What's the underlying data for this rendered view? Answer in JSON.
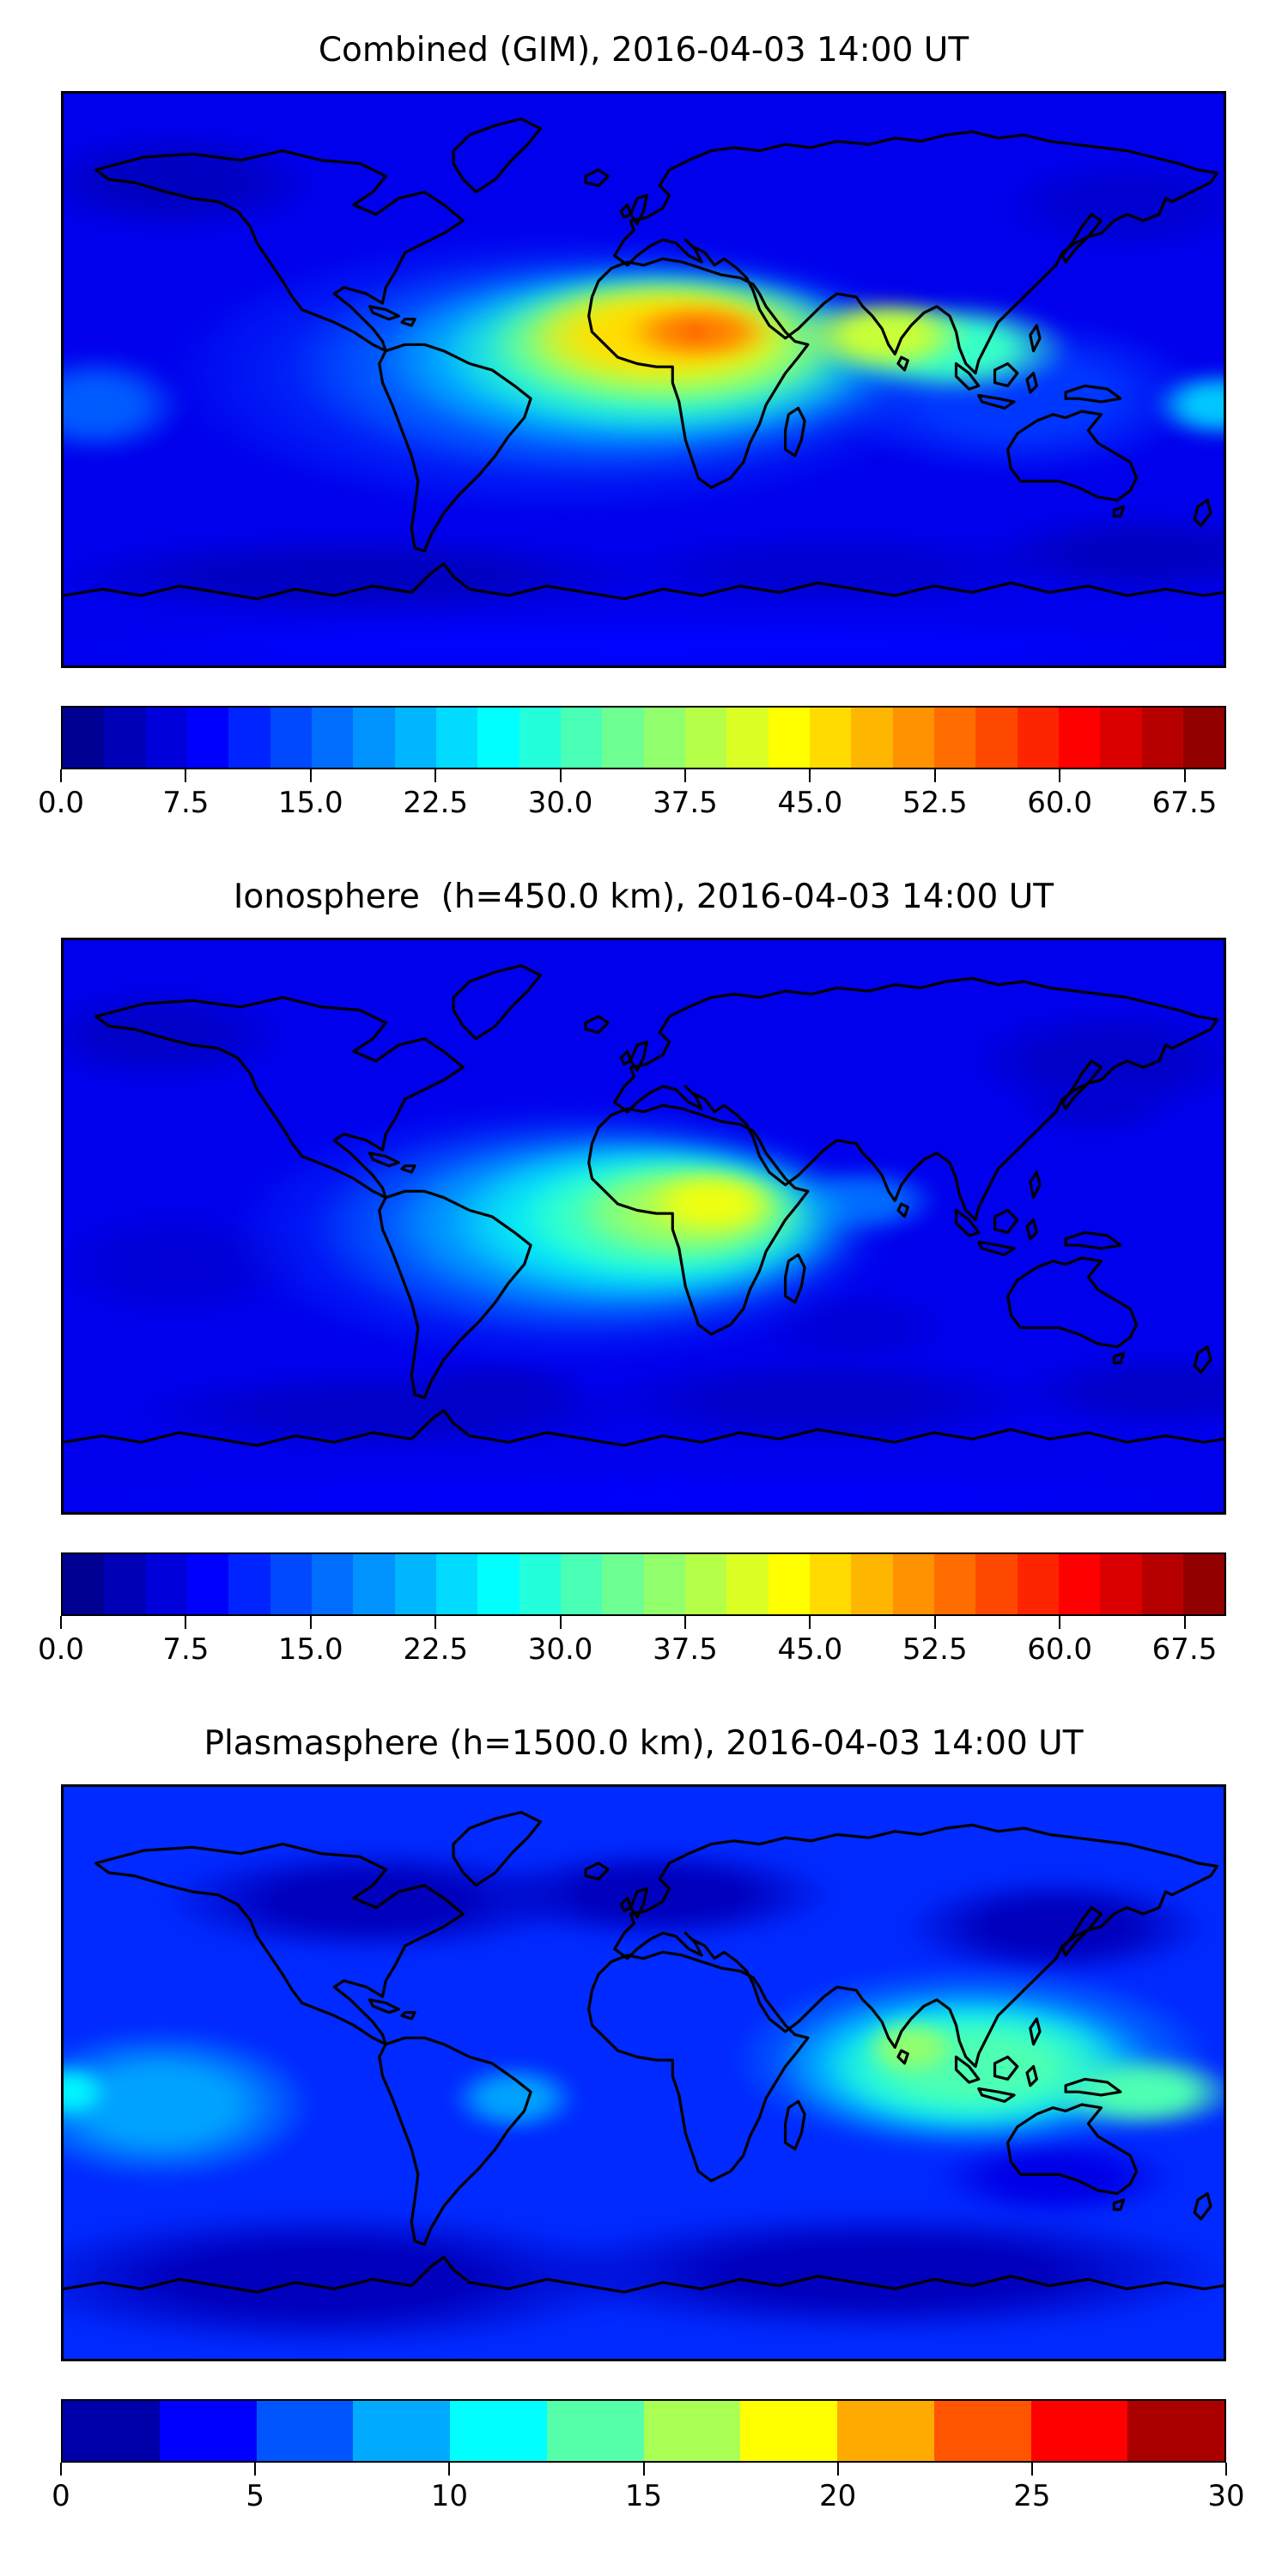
{
  "figure": {
    "background_color": "#ffffff",
    "panel_count": 3
  },
  "chart_data": [
    {
      "id": "combined",
      "type": "heatmap",
      "title": "Combined (GIM), 2016-04-03 14:00 UT",
      "projection": "equirectangular",
      "lon_range": [
        -180,
        180
      ],
      "lat_range": [
        -90,
        90
      ],
      "coastlines": true,
      "base_value": 7.5,
      "colorbar": {
        "colormap": "jet",
        "orientation": "horizontal",
        "vmin": 0,
        "vmax": 70,
        "band_step": 2.5,
        "ticks": [
          {
            "value": 0,
            "label": "0.0"
          },
          {
            "value": 7.5,
            "label": "7.5"
          },
          {
            "value": 15,
            "label": "15.0"
          },
          {
            "value": 22.5,
            "label": "22.5"
          },
          {
            "value": 30,
            "label": "30.0"
          },
          {
            "value": 37.5,
            "label": "37.5"
          },
          {
            "value": 45,
            "label": "45.0"
          },
          {
            "value": 52.5,
            "label": "52.5"
          },
          {
            "value": 60,
            "label": "60.0"
          },
          {
            "value": 67.5,
            "label": "67.5"
          }
        ]
      },
      "features": [
        {
          "name": "polar-low-northwest",
          "lon": -145,
          "lat": 62,
          "rx": 45,
          "ry": 16,
          "value": 4.5
        },
        {
          "name": "polar-low-northeast",
          "lon": 150,
          "lat": 55,
          "rx": 40,
          "ry": 15,
          "value": 5.5
        },
        {
          "name": "south-low-band-west",
          "lon": -90,
          "lat": -62,
          "rx": 95,
          "ry": 13,
          "value": 4.5
        },
        {
          "name": "south-low-band-mid",
          "lon": 60,
          "lat": -60,
          "rx": 70,
          "ry": 12,
          "value": 5.5
        },
        {
          "name": "south-low-band-east",
          "lon": 155,
          "lat": -55,
          "rx": 50,
          "ry": 13,
          "value": 4.5
        },
        {
          "name": "south-polar-strip",
          "lon": 0,
          "lat": -84,
          "rx": 200,
          "ry": 8,
          "value": 9
        },
        {
          "name": "midlat-enhancement",
          "lon": -25,
          "lat": 2,
          "rx": 125,
          "ry": 45,
          "value": 12.5
        },
        {
          "name": "se-asia-band",
          "lon": 115,
          "lat": -5,
          "rx": 60,
          "ry": 25,
          "value": 12.5
        },
        {
          "name": "pacific-west-equator",
          "lon": -170,
          "lat": -8,
          "rx": 28,
          "ry": 16,
          "value": 15
        },
        {
          "name": "atlantic-africa-broad",
          "lon": -10,
          "lat": 5,
          "rx": 100,
          "ry": 36,
          "value": 17.5
        },
        {
          "name": "equatorial-cyan",
          "lon": 0,
          "lat": 7,
          "rx": 82,
          "ry": 30,
          "value": 25
        },
        {
          "name": "pacific-east-edge",
          "lon": 178,
          "lat": -8,
          "rx": 20,
          "ry": 11,
          "value": 22.5
        },
        {
          "name": "green-band",
          "lon": 5,
          "lat": 9,
          "rx": 68,
          "ry": 26,
          "value": 32.5
        },
        {
          "name": "se-asia-green",
          "lon": 95,
          "lat": 10,
          "rx": 38,
          "ry": 15,
          "value": 30
        },
        {
          "name": "yellow-green-band",
          "lon": 8,
          "lat": 12,
          "rx": 56,
          "ry": 21,
          "value": 40
        },
        {
          "name": "india-yellow",
          "lon": 75,
          "lat": 14,
          "rx": 26,
          "ry": 12,
          "value": 40
        },
        {
          "name": "yellow-core-band",
          "lon": 5,
          "lat": 14,
          "rx": 42,
          "ry": 16,
          "value": 46
        },
        {
          "name": "sahel-orange-core",
          "lon": 17,
          "lat": 15,
          "rx": 23,
          "ry": 9,
          "value": 52.5
        },
        {
          "name": "peak-dash",
          "lon": 16,
          "lat": 15,
          "rx": 5,
          "ry": 1.6,
          "value": 57
        }
      ]
    },
    {
      "id": "ionosphere",
      "type": "heatmap",
      "title": "Ionosphere  (h=450.0 km), 2016-04-03 14:00 UT",
      "projection": "equirectangular",
      "lon_range": [
        -180,
        180
      ],
      "lat_range": [
        -90,
        90
      ],
      "coastlines": true,
      "base_value": 7.5,
      "colorbar": {
        "colormap": "jet",
        "orientation": "horizontal",
        "vmin": 0,
        "vmax": 70,
        "band_step": 2.5,
        "ticks": [
          {
            "value": 0,
            "label": "0.0"
          },
          {
            "value": 7.5,
            "label": "7.5"
          },
          {
            "value": 15,
            "label": "15.0"
          },
          {
            "value": 22.5,
            "label": "22.5"
          },
          {
            "value": 30,
            "label": "30.0"
          },
          {
            "value": 37.5,
            "label": "37.5"
          },
          {
            "value": 45,
            "label": "45.0"
          },
          {
            "value": 52.5,
            "label": "52.5"
          },
          {
            "value": 60,
            "label": "60.0"
          },
          {
            "value": 67.5,
            "label": "67.5"
          }
        ]
      },
      "features": [
        {
          "name": "polar-low-northwest",
          "lon": -150,
          "lat": 60,
          "rx": 40,
          "ry": 15,
          "value": 5
        },
        {
          "name": "polar-low-northeast",
          "lon": 145,
          "lat": 52,
          "rx": 45,
          "ry": 17,
          "value": 5
        },
        {
          "name": "japan-low",
          "lon": 140,
          "lat": 38,
          "rx": 25,
          "ry": 10,
          "value": 5.5
        },
        {
          "name": "pacific-low-southwest",
          "lon": -145,
          "lat": -12,
          "rx": 40,
          "ry": 18,
          "value": 6
        },
        {
          "name": "south-low-band-west",
          "lon": -80,
          "lat": -58,
          "rx": 80,
          "ry": 13,
          "value": 5
        },
        {
          "name": "south-low-band-mid",
          "lon": 55,
          "lat": -55,
          "rx": 70,
          "ry": 14,
          "value": 5
        },
        {
          "name": "south-low-band-east",
          "lon": 160,
          "lat": -52,
          "rx": 45,
          "ry": 12,
          "value": 5
        },
        {
          "name": "falkland-low",
          "lon": -45,
          "lat": -52,
          "rx": 28,
          "ry": 10,
          "value": 5
        },
        {
          "name": "indian-ocean-low",
          "lon": 65,
          "lat": -32,
          "rx": 30,
          "ry": 12,
          "value": 6
        },
        {
          "name": "south-polar-strip",
          "lon": 0,
          "lat": -85,
          "rx": 200,
          "ry": 7,
          "value": 8.5
        },
        {
          "name": "atlantic-broad-blue",
          "lon": -25,
          "lat": -2,
          "rx": 105,
          "ry": 42,
          "value": 12.5
        },
        {
          "name": "atlantic-broad-azure",
          "lon": -15,
          "lat": 0,
          "rx": 88,
          "ry": 35,
          "value": 17.5
        },
        {
          "name": "india-cyan-tail",
          "lon": 68,
          "lat": 8,
          "rx": 24,
          "ry": 11,
          "value": 16
        },
        {
          "name": "cyan-band",
          "lon": -5,
          "lat": 1,
          "rx": 74,
          "ry": 29,
          "value": 22.5
        },
        {
          "name": "bright-cyan-band",
          "lon": 2,
          "lat": 2,
          "rx": 61,
          "ry": 25,
          "value": 27.5
        },
        {
          "name": "green-band",
          "lon": 9,
          "lat": 3,
          "rx": 47,
          "ry": 20,
          "value": 32.5
        },
        {
          "name": "yellow-green-band",
          "lon": 15,
          "lat": 5,
          "rx": 35,
          "ry": 15,
          "value": 37.5
        },
        {
          "name": "africa-yellow-core",
          "lon": 21,
          "lat": 7,
          "rx": 21,
          "ry": 10,
          "value": 42.5
        }
      ]
    },
    {
      "id": "plasmasphere",
      "type": "heatmap",
      "title": "Plasmasphere (h=1500.0 km), 2016-04-03 14:00 UT",
      "projection": "equirectangular",
      "lon_range": [
        -180,
        180
      ],
      "lat_range": [
        -90,
        90
      ],
      "coastlines": true,
      "base_value": 5,
      "colorbar": {
        "colormap": "jet",
        "orientation": "horizontal",
        "vmin": 0,
        "vmax": 30,
        "band_step": 2.5,
        "ticks": [
          {
            "value": 0,
            "label": "0"
          },
          {
            "value": 5,
            "label": "5"
          },
          {
            "value": 10,
            "label": "10"
          },
          {
            "value": 15,
            "label": "15"
          },
          {
            "value": 20,
            "label": "20"
          },
          {
            "value": 25,
            "label": "25"
          },
          {
            "value": 30,
            "label": "30"
          }
        ]
      },
      "features": [
        {
          "name": "north-low-band-america",
          "lon": -85,
          "lat": 54,
          "rx": 65,
          "ry": 17,
          "value": 1.8
        },
        {
          "name": "north-low-band-europe",
          "lon": 5,
          "lat": 56,
          "rx": 55,
          "ry": 15,
          "value": 1.8
        },
        {
          "name": "north-low-band-asia",
          "lon": 128,
          "lat": 46,
          "rx": 48,
          "ry": 16,
          "value": 1.8
        },
        {
          "name": "south-low-band-west",
          "lon": -100,
          "lat": -65,
          "rx": 100,
          "ry": 22,
          "value": 1.8
        },
        {
          "name": "south-low-band-east",
          "lon": 75,
          "lat": -63,
          "rx": 110,
          "ry": 20,
          "value": 1.8
        },
        {
          "name": "australia-low",
          "lon": 128,
          "lat": -33,
          "rx": 38,
          "ry": 13,
          "value": 3
        },
        {
          "name": "pacific-mid-blue",
          "lon": -150,
          "lat": -10,
          "rx": 48,
          "ry": 24,
          "value": 8.5
        },
        {
          "name": "brazil-mid-blue",
          "lon": -40,
          "lat": -8,
          "rx": 20,
          "ry": 11,
          "value": 8.5
        },
        {
          "name": "asia-mid-blue",
          "lon": 102,
          "lat": 4,
          "rx": 75,
          "ry": 30,
          "value": 8.5
        },
        {
          "name": "asia-light-cyan",
          "lon": 100,
          "lat": 2,
          "rx": 58,
          "ry": 24,
          "value": 11
        },
        {
          "name": "pacific-left-cyan",
          "lon": -178,
          "lat": -6,
          "rx": 12,
          "ry": 9,
          "value": 11
        },
        {
          "name": "asia-cyan-core-band",
          "lon": 103,
          "lat": 2,
          "rx": 47,
          "ry": 19,
          "value": 13.5
        },
        {
          "name": "pacific-cyan-tail",
          "lon": 155,
          "lat": -6,
          "rx": 30,
          "ry": 12,
          "value": 13.5
        },
        {
          "name": "india-green-core",
          "lon": 83,
          "lat": 8,
          "rx": 15,
          "ry": 9,
          "value": 15.5
        }
      ]
    }
  ]
}
